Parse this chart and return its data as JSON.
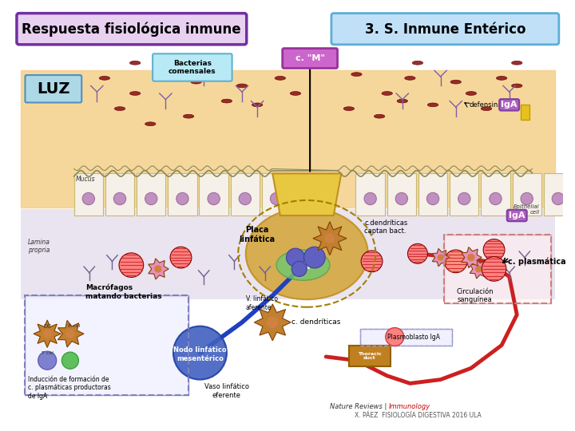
{
  "bg_color": "#ffffff",
  "title_left": "Respuesta fisiológica inmune",
  "title_right": "3. S. Inmune Entérico",
  "title_left_bg": "#e8d0f0",
  "title_left_border": "#7030a0",
  "title_right_bg": "#c0e0f8",
  "title_right_border": "#5bafd6",
  "luz_label": "LUZ",
  "luz_bg": "#add8e6",
  "bacterias_label": "Bacterias\ncomensales",
  "bacterias_bg": "#b0e8f0",
  "cm_label": "c. \"M\"",
  "cm_bg": "#cc66cc",
  "defensina_label": "defensina",
  "iga_label": "IgA",
  "iga_bg": "#cc66cc",
  "placa_label": "Placa\nlinfática",
  "cdendriticas_label": "c.dendríticas\ncaptan bact.",
  "macrofagos_label": "Macrófagos\nmatando bacterias",
  "v_linfatico_label": "V. linfático\naferente",
  "c_dendriticas_label": "c. dendríticas",
  "c_plasmatica_label": "c. plasmática",
  "plasmoblasto_label": "Plasmoblasto IgA",
  "nodo_label": "Nodo linfático\nmesentérico",
  "induccion_label": "Inducción de formación de\nc. plasmáticas productoras\nde IgA",
  "vaso_label": "Vaso linfático\neferente",
  "circulacion_label": "Circulación\nsanguínea",
  "mucus_label": "Mucus",
  "lamina_label": "Lamina\npropria",
  "epithelial_label": "Epithelial\ncell",
  "nature_label": "Nature Reviews | Immunology",
  "footer_label": "X. PÁEZ  FISIOLOGÍA DIGESTIVA 2016 ULA",
  "intestine_bg": "#f5d08a",
  "epithelium_bg": "#f0e8d0",
  "lamina_bg": "#e8e0f0",
  "plaque_bg": "#d4a860"
}
